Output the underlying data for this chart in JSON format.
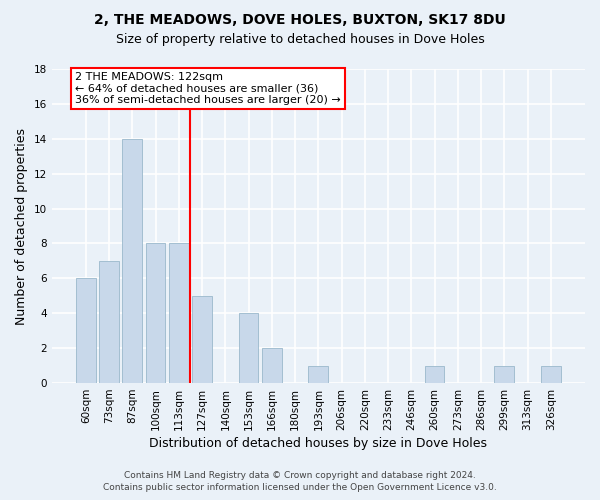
{
  "title1": "2, THE MEADOWS, DOVE HOLES, BUXTON, SK17 8DU",
  "title2": "Size of property relative to detached houses in Dove Holes",
  "xlabel": "Distribution of detached houses by size in Dove Holes",
  "ylabel": "Number of detached properties",
  "categories": [
    "60sqm",
    "73sqm",
    "87sqm",
    "100sqm",
    "113sqm",
    "127sqm",
    "140sqm",
    "153sqm",
    "166sqm",
    "180sqm",
    "193sqm",
    "206sqm",
    "220sqm",
    "233sqm",
    "246sqm",
    "260sqm",
    "273sqm",
    "286sqm",
    "299sqm",
    "313sqm",
    "326sqm"
  ],
  "values": [
    6,
    7,
    14,
    8,
    8,
    5,
    0,
    4,
    2,
    0,
    1,
    0,
    0,
    0,
    0,
    1,
    0,
    0,
    1,
    0,
    1
  ],
  "bar_color": "#c8d8ea",
  "bar_edge_color": "#9ab8cc",
  "property_line_x": 4.5,
  "annotation_line1": "2 THE MEADOWS: 122sqm",
  "annotation_line2": "← 64% of detached houses are smaller (36)",
  "annotation_line3": "36% of semi-detached houses are larger (20) →",
  "annotation_box_color": "white",
  "annotation_box_edge": "red",
  "vline_color": "red",
  "ylim": [
    0,
    18
  ],
  "yticks": [
    0,
    2,
    4,
    6,
    8,
    10,
    12,
    14,
    16,
    18
  ],
  "footer1": "Contains HM Land Registry data © Crown copyright and database right 2024.",
  "footer2": "Contains public sector information licensed under the Open Government Licence v3.0.",
  "bg_color": "#eaf1f8",
  "plot_bg_color": "#eaf1f8",
  "grid_color": "white",
  "title1_fontsize": 10,
  "title2_fontsize": 9,
  "ylabel_fontsize": 9,
  "xlabel_fontsize": 9,
  "tick_fontsize": 7.5,
  "annot_fontsize": 8,
  "footer_fontsize": 6.5
}
